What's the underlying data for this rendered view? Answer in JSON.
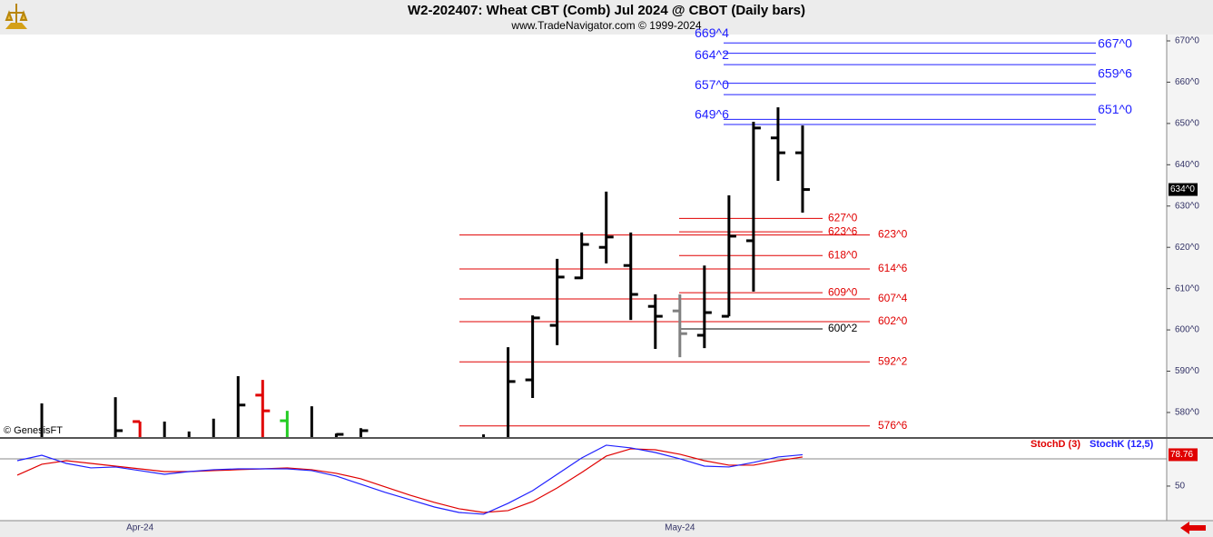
{
  "chart_data": [
    {
      "type": "ohlc",
      "title": "W2-202407:  Wheat CBT (Comb) Jul 2024 @ CBOT  (Daily bars)",
      "subtitle": "www.TradeNavigator.com © 1999-2024",
      "watermark": "© GenesisFT",
      "categories": [
        null,
        null,
        null,
        null,
        null,
        "Apr-24",
        null,
        null,
        null,
        null,
        null,
        null,
        null,
        null,
        null,
        null,
        null,
        null,
        null,
        null,
        null,
        null,
        null,
        null,
        null,
        null,
        null,
        "May-24",
        null,
        null,
        null,
        null,
        null
      ],
      "open": [
        null,
        573,
        null,
        null,
        573,
        577.8,
        573,
        573,
        573,
        573,
        584.2,
        578,
        573,
        573,
        573,
        null,
        null,
        null,
        null,
        573,
        573,
        587.9,
        601.1,
        612.6,
        620,
        615.6,
        605.7,
        604.6,
        598.7,
        603.3,
        621.6,
        646.5,
        642.9
      ],
      "high": [
        null,
        582.2,
        null,
        null,
        583.7,
        577.8,
        577.8,
        575.4,
        578.5,
        588.8,
        587.9,
        580.4,
        581.5,
        574.9,
        576.2,
        null,
        null,
        null,
        null,
        574.7,
        595.8,
        603.5,
        617.2,
        623.6,
        633.5,
        623.6,
        608.6,
        608.6,
        615.6,
        632.6,
        650.4,
        653.9,
        649.5
      ],
      "low": [
        null,
        572,
        null,
        null,
        572,
        572,
        572,
        572,
        572,
        572,
        572,
        572,
        572,
        572,
        572,
        null,
        null,
        null,
        null,
        572,
        572,
        583.5,
        596.3,
        612.3,
        616.1,
        602.4,
        595.4,
        593.4,
        595.6,
        603.3,
        609.3,
        636.1,
        628.4
      ],
      "close": [
        null,
        573,
        null,
        null,
        575.6,
        572.5,
        573,
        573,
        573,
        581.8,
        580.4,
        573,
        573,
        574.7,
        575.6,
        null,
        null,
        null,
        null,
        573,
        587.5,
        602.9,
        612.8,
        620.7,
        622.5,
        608.6,
        603.3,
        599.1,
        604.2,
        622.7,
        648.9,
        642.9,
        634
      ],
      "bar_colors": [
        null,
        "#000000",
        null,
        null,
        "#000000",
        "#e00000",
        "#000000",
        "#000000",
        "#000000",
        "#000000",
        "#e00000",
        "#22cc22",
        "#000000",
        "#000000",
        "#000000",
        null,
        null,
        null,
        null,
        "#000000",
        "#000000",
        "#000000",
        "#000000",
        "#000000",
        "#000000",
        "#000000",
        "#000000",
        "#808080",
        "#000000",
        "#000000",
        "#000000",
        "#000000",
        "#000000"
      ],
      "ylim": [
        574.05,
        671.54
      ],
      "yticks": [
        {
          "value": 580,
          "label": "580^0"
        },
        {
          "value": 590,
          "label": "590^0"
        },
        {
          "value": 600,
          "label": "600^0"
        },
        {
          "value": 610,
          "label": "610^0"
        },
        {
          "value": 620,
          "label": "620^0"
        },
        {
          "value": 630,
          "label": "630^0"
        },
        {
          "value": 640,
          "label": "640^0"
        },
        {
          "value": 650,
          "label": "650^0"
        },
        {
          "value": 660,
          "label": "660^0"
        },
        {
          "value": 670,
          "label": "670^0"
        }
      ],
      "last_price": {
        "value": 634,
        "label": "634^0"
      },
      "level_sets": [
        {
          "color": "#2020ff",
          "items": [
            {
              "value": 669.5,
              "label": "669^4"
            },
            {
              "value": 667,
              "label": "667^0"
            },
            {
              "value": 664.25,
              "label": "664^2"
            },
            {
              "value": 659.75,
              "label": "659^6"
            },
            {
              "value": 657,
              "label": "657^0"
            },
            {
              "value": 651,
              "label": "651^0"
            },
            {
              "value": 649.75,
              "label": "649^6"
            }
          ]
        },
        {
          "color": "#e00000",
          "items": [
            {
              "value": 627,
              "label": "627^0"
            },
            {
              "value": 623.75,
              "label": "623^6"
            },
            {
              "value": 618,
              "label": "618^0"
            },
            {
              "value": 609,
              "label": "609^0"
            }
          ]
        },
        {
          "color": "#000000",
          "items": [
            {
              "value": 600.25,
              "label": "600^2"
            }
          ]
        },
        {
          "color": "#e00000",
          "items": [
            {
              "value": 623,
              "label": "623^0"
            },
            {
              "value": 614.75,
              "label": "614^6"
            },
            {
              "value": 607.5,
              "label": "607^4"
            },
            {
              "value": 602,
              "label": "602^0"
            },
            {
              "value": 592.25,
              "label": "592^2"
            },
            {
              "value": 576.75,
              "label": "576^6"
            }
          ]
        }
      ]
    },
    {
      "type": "line",
      "series": [
        {
          "name": "StochD (3)",
          "color": "#e00000",
          "values": [
            60,
            70,
            73.3,
            70.8,
            68.3,
            65.8,
            63.3,
            63.3,
            64.2,
            65,
            65.8,
            66.7,
            65,
            61.7,
            56.7,
            49.2,
            41.7,
            35,
            29.2,
            25.8,
            27.5,
            35.8,
            48.3,
            62.5,
            77.5,
            84.2,
            83.3,
            79.2,
            73.3,
            69.2,
            69.2,
            73.3,
            76.7
          ]
        },
        {
          "name": "StochK (12,5)",
          "color": "#2020ff",
          "values": [
            73.3,
            78.3,
            70.8,
            66.7,
            67.5,
            64.2,
            60.8,
            63.3,
            65,
            65.8,
            65.8,
            65.8,
            64.2,
            59.2,
            51.7,
            44.2,
            37.5,
            30.8,
            25.8,
            24.2,
            34.2,
            45.8,
            60.8,
            75.8,
            87.5,
            85,
            80.8,
            75,
            68.3,
            67.5,
            71.7,
            76.7,
            78.76
          ]
        }
      ],
      "ylim": [
        18.3,
        93.3
      ],
      "yticks": [
        50
      ],
      "hlines": [
        75
      ]
    }
  ]
}
